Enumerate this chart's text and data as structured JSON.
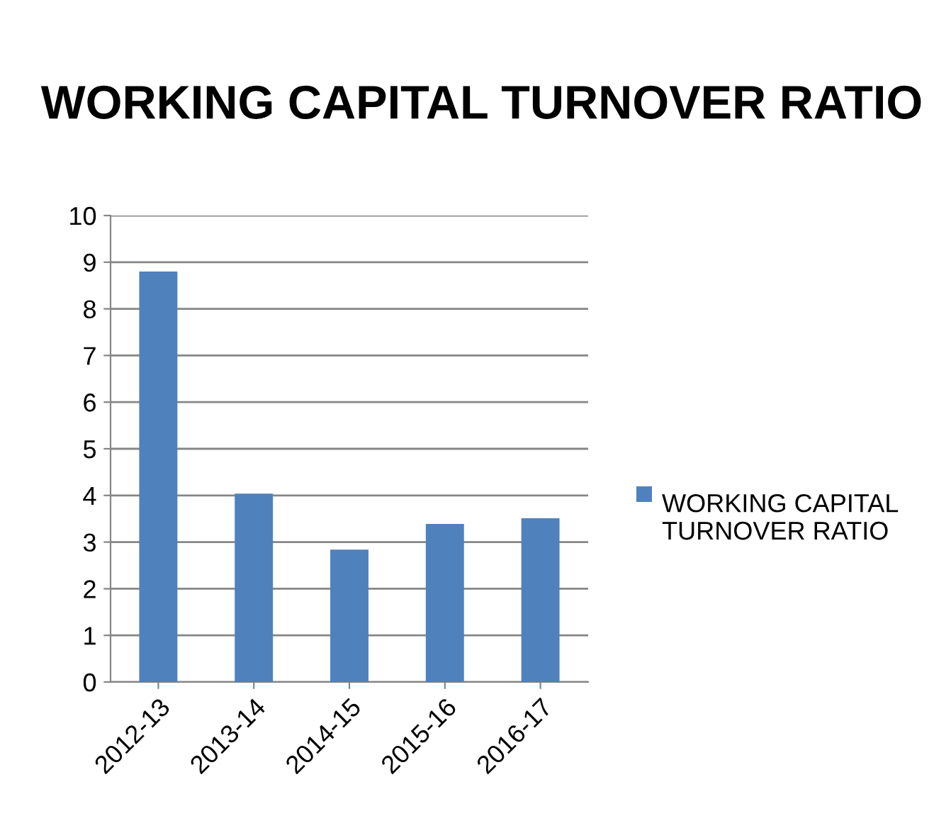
{
  "chart_data": {
    "type": "bar",
    "title": "WORKING CAPITAL TURNOVER RATIO",
    "categories": [
      "2012-13",
      "2013-14",
      "2014-15",
      "2015-16",
      "2016-17"
    ],
    "series": [
      {
        "name": "WORKING CAPITAL TURNOVER RATIO",
        "color": "#4f81bd",
        "values": [
          8.8,
          4.04,
          2.84,
          3.39,
          3.51
        ]
      }
    ],
    "ylim": [
      0,
      10
    ],
    "yticks": [
      0,
      1,
      2,
      3,
      4,
      5,
      6,
      7,
      8,
      9,
      10
    ],
    "grid": "y",
    "legend": "right"
  }
}
